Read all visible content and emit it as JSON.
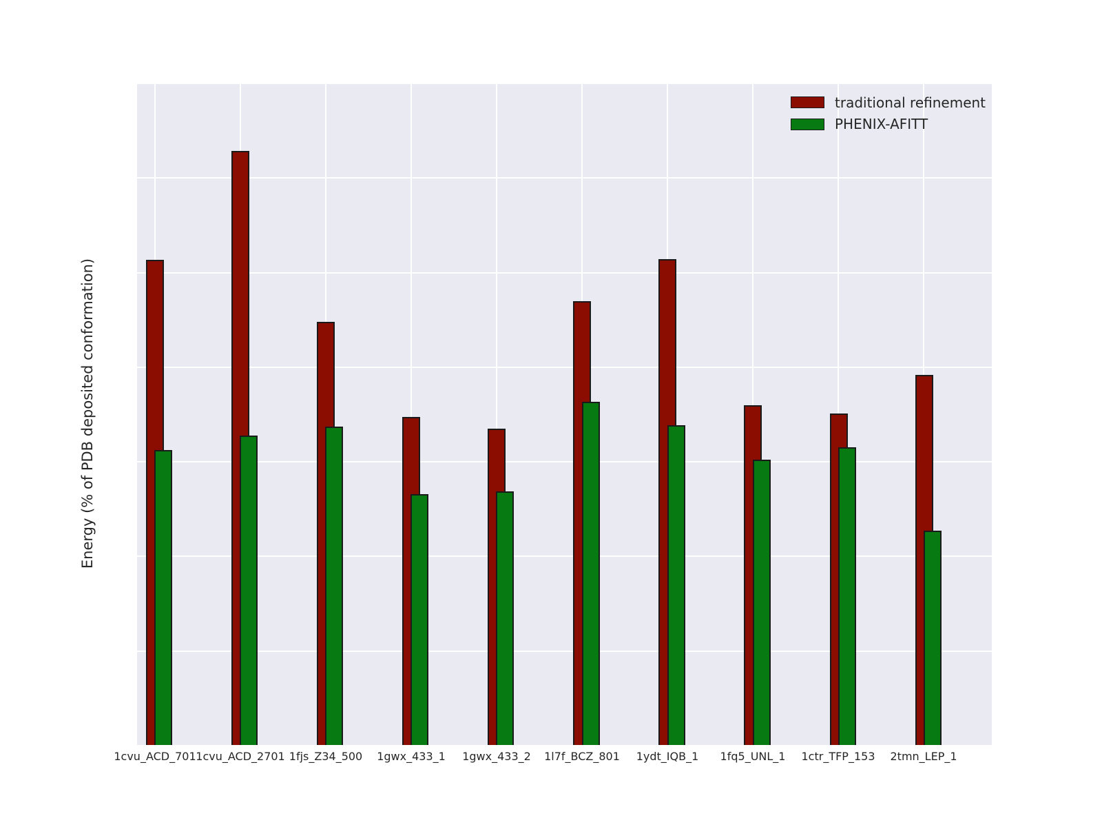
{
  "chart_data": {
    "type": "bar",
    "title": "",
    "xlabel": "",
    "ylabel": "Energy (% of PDB deposited conformation)",
    "categories": [
      "1cvu_ACD_701",
      "1cvu_ACD_2701",
      "1fjs_Z34_500",
      "1gwx_433_1",
      "1gwx_433_2",
      "1l7f_BCZ_801",
      "1ydt_IQB_1",
      "1fq5_UNL_1",
      "1ctr_TFP_153",
      "2tmn_LEP_1"
    ],
    "series": [
      {
        "name": "traditional refinement",
        "color": "#8B0D02",
        "values": [
          102.5,
          125.6,
          89.4,
          69.4,
          66.8,
          93.8,
          102.7,
          71.8,
          70.0,
          78.3
        ]
      },
      {
        "name": "PHENIX-AFITT",
        "color": "#077B12",
        "values": [
          62.3,
          65.4,
          67.3,
          53.0,
          53.6,
          72.6,
          67.6,
          60.3,
          63.0,
          45.3
        ]
      }
    ],
    "ylim": [
      0,
      140
    ],
    "yticks": [
      0,
      20,
      40,
      60,
      80,
      100,
      120,
      140
    ],
    "grid": true,
    "legend_position": "upper right",
    "colors": {
      "plot_background": "#EAEAF2",
      "grid_color": "#FFFFFF",
      "bar_edge": "#1A1A1A",
      "text": "#262626",
      "figure_background": "#FFFFFF"
    }
  }
}
